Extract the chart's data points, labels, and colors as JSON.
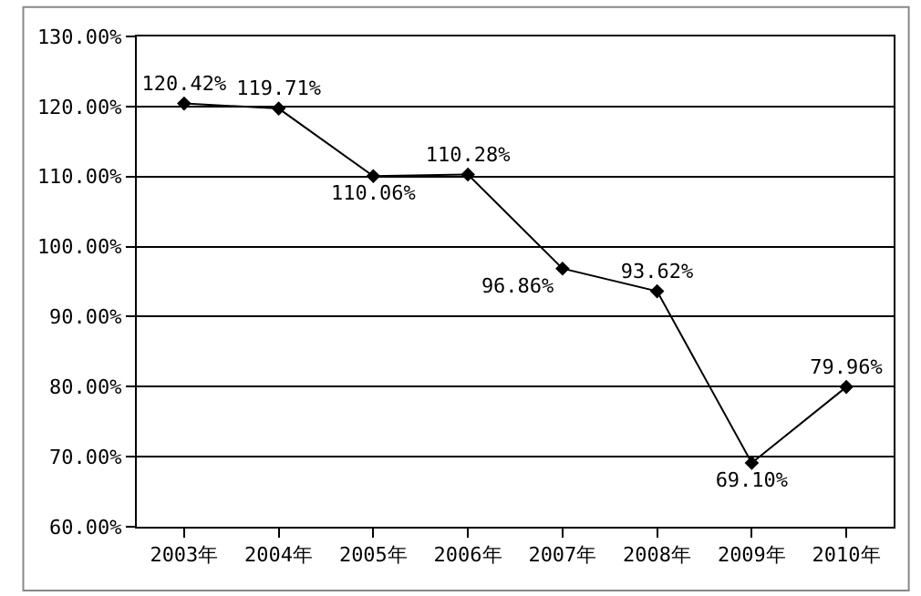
{
  "chart_data": {
    "type": "line",
    "categories": [
      "2003年",
      "2004年",
      "2005年",
      "2006年",
      "2007年",
      "2008年",
      "2009年",
      "2010年"
    ],
    "series": [
      {
        "color": "#000000",
        "values": [
          120.42,
          119.71,
          110.06,
          110.28,
          96.86,
          93.62,
          69.1,
          79.96
        ],
        "value_labels": [
          "120.42%",
          "119.71%",
          "110.06%",
          "110.28%",
          "96.86%",
          "93.62%",
          "69.10%",
          "79.96%"
        ]
      }
    ],
    "ylim": [
      60,
      130
    ],
    "yticks": [
      {
        "value": 60,
        "label": "60.00%"
      },
      {
        "value": 70,
        "label": "70.00%"
      },
      {
        "value": 80,
        "label": "80.00%"
      },
      {
        "value": 90,
        "label": "90.00%"
      },
      {
        "value": 100,
        "label": "100.00%"
      },
      {
        "value": 110,
        "label": "110.00%"
      },
      {
        "value": 120,
        "label": "120.00%"
      },
      {
        "value": 130,
        "label": "130.00%"
      }
    ],
    "grid": "y",
    "marker": "diamond",
    "line_style": "solid",
    "legend": false
  }
}
